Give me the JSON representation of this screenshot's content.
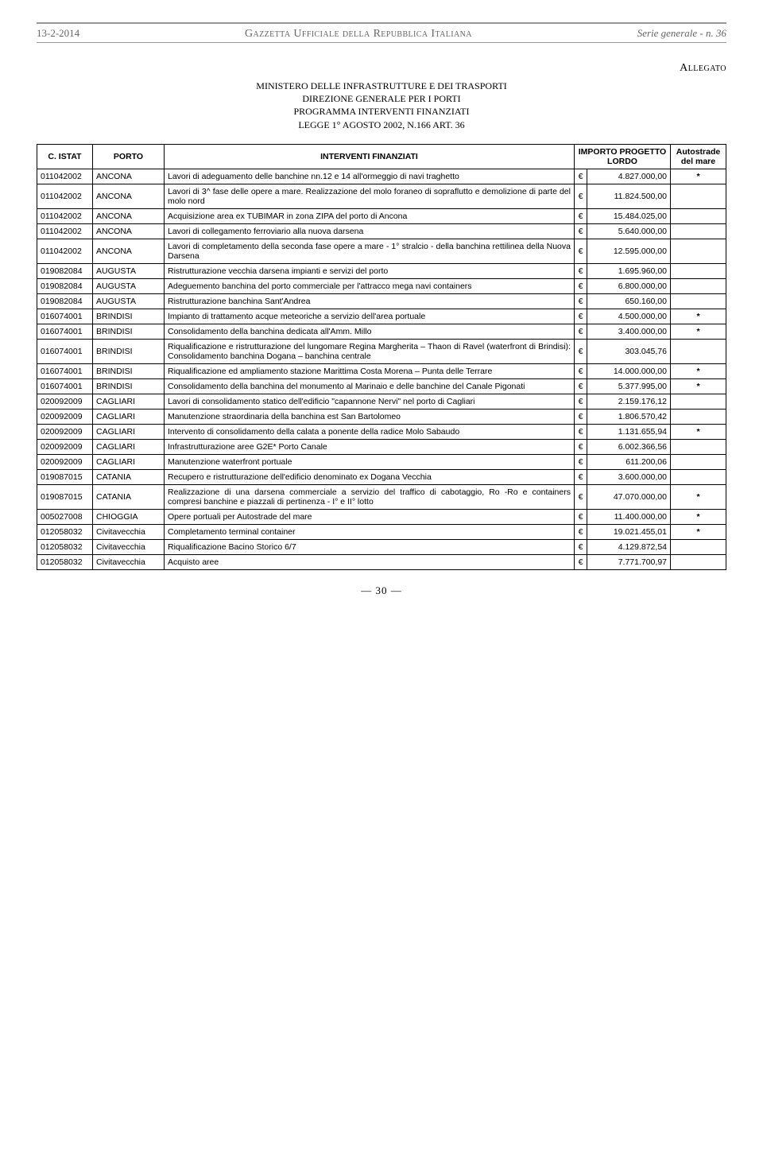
{
  "header": {
    "date": "13-2-2014",
    "title": "Gazzetta Ufficiale della Repubblica Italiana",
    "serie": "Serie generale - n. 36"
  },
  "allegato_label": "Allegato",
  "doc_title": {
    "l1": "MINISTERO DELLE INFRASTRUTTURE E DEI TRASPORTI",
    "l2": "DIREZIONE GENERALE PER I PORTI",
    "l3": "PROGRAMMA INTERVENTI FINANZIATI",
    "l4": "LEGGE 1° AGOSTO 2002, N.166 ART. 36"
  },
  "columns": {
    "istat": "C. ISTAT",
    "porto": "PORTO",
    "interventi": "INTERVENTI FINANZIATI",
    "importo": "IMPORTO PROGETTO LORDO",
    "autostrade": "Autostrade del mare"
  },
  "rows": [
    {
      "istat": "011042002",
      "porto": "ANCONA",
      "desc": "Lavori di adeguamento delle banchine nn.12 e 14 all'ormeggio di navi traghetto",
      "cur": "€",
      "amt": "4.827.000,00",
      "auto": "*"
    },
    {
      "istat": "011042002",
      "porto": "ANCONA",
      "desc": "Lavori di 3^ fase delle opere a mare. Realizzazione del molo foraneo di sopraflutto e demolizione di parte del molo nord",
      "cur": "€",
      "amt": "11.824.500,00",
      "auto": ""
    },
    {
      "istat": "011042002",
      "porto": "ANCONA",
      "desc": "Acquisizione area ex TUBIMAR in zona ZIPA del porto di Ancona",
      "cur": "€",
      "amt": "15.484.025,00",
      "auto": ""
    },
    {
      "istat": "011042002",
      "porto": "ANCONA",
      "desc": "Lavori di collegamento ferroviario alla nuova darsena",
      "cur": "€",
      "amt": "5.640.000,00",
      "auto": ""
    },
    {
      "istat": "011042002",
      "porto": "ANCONA",
      "desc": "Lavori di completamento della seconda fase opere a mare - 1° stralcio - della banchina rettilinea della Nuova Darsena",
      "cur": "€",
      "amt": "12.595.000,00",
      "auto": ""
    },
    {
      "istat": "019082084",
      "porto": "AUGUSTA",
      "desc": "Ristrutturazione vecchia darsena impianti e servizi del porto",
      "cur": "€",
      "amt": "1.695.960,00",
      "auto": ""
    },
    {
      "istat": "019082084",
      "porto": "AUGUSTA",
      "desc": "Adeguemento banchina del porto commerciale per l'attracco mega navi containers",
      "cur": "€",
      "amt": "6.800.000,00",
      "auto": ""
    },
    {
      "istat": "019082084",
      "porto": "AUGUSTA",
      "desc": "Ristrutturazione banchina Sant'Andrea",
      "cur": "€",
      "amt": "650.160,00",
      "auto": ""
    },
    {
      "istat": "016074001",
      "porto": "BRINDISI",
      "desc": "Impianto di trattamento acque meteoriche a servizio dell'area portuale",
      "cur": "€",
      "amt": "4.500.000,00",
      "auto": "*"
    },
    {
      "istat": "016074001",
      "porto": "BRINDISI",
      "desc": "Consolidamento della banchina dedicata all'Amm. Millo",
      "cur": "€",
      "amt": "3.400.000,00",
      "auto": "*"
    },
    {
      "istat": "016074001",
      "porto": "BRINDISI",
      "desc": "Riqualificazione e ristrutturazione del lungomare Regina Margherita – Thaon di Ravel (waterfront di Brindisi): Consolidamento banchina Dogana – banchina centrale",
      "cur": "€",
      "amt": "303.045,76",
      "auto": ""
    },
    {
      "istat": "016074001",
      "porto": "BRINDISI",
      "desc": "Riqualificazione ed ampliamento stazione Marittima Costa Morena – Punta delle Terrare",
      "cur": "€",
      "amt": "14.000.000,00",
      "auto": "*"
    },
    {
      "istat": "016074001",
      "porto": "BRINDISI",
      "desc": "Consolidamento della banchina del monumento al Marinaio e delle banchine del Canale Pigonati",
      "cur": "€",
      "amt": "5.377.995,00",
      "auto": "*"
    },
    {
      "istat": "020092009",
      "porto": "CAGLIARI",
      "desc": "Lavori di consolidamento statico dell'edificio \"capannone Nervi\" nel porto di Cagliari",
      "cur": "€",
      "amt": "2.159.176,12",
      "auto": ""
    },
    {
      "istat": "020092009",
      "porto": "CAGLIARI",
      "desc": "Manutenzione straordinaria della banchina est San Bartolomeo",
      "cur": "€",
      "amt": "1.806.570,42",
      "auto": ""
    },
    {
      "istat": "020092009",
      "porto": "CAGLIARI",
      "desc": "Intervento di consolidamento della calata a ponente della radice Molo Sabaudo",
      "cur": "€",
      "amt": "1.131.655,94",
      "auto": "*"
    },
    {
      "istat": "020092009",
      "porto": "CAGLIARI",
      "desc": "Infrastrutturazione aree G2E* Porto Canale",
      "cur": "€",
      "amt": "6.002.366,56",
      "auto": ""
    },
    {
      "istat": "020092009",
      "porto": "CAGLIARI",
      "desc": "Manutenzione waterfront portuale",
      "cur": "€",
      "amt": "611.200,06",
      "auto": ""
    },
    {
      "istat": "019087015",
      "porto": "CATANIA",
      "desc": "Recupero e ristrutturazione dell'edificio denominato ex Dogana Vecchia",
      "cur": "€",
      "amt": "3.600.000,00",
      "auto": ""
    },
    {
      "istat": "019087015",
      "porto": "CATANIA",
      "desc": "Realizzazione di una darsena commerciale a servizio del traffico di cabotaggio, Ro -Ro e containers compresi banchine e piazzali di pertinenza - I° e II° lotto",
      "cur": "€",
      "amt": "47.070.000,00",
      "auto": "*"
    },
    {
      "istat": "005027008",
      "porto": "CHIOGGIA",
      "desc": "Opere portuali per Autostrade del mare",
      "cur": "€",
      "amt": "11.400.000,00",
      "auto": "*"
    },
    {
      "istat": "012058032",
      "porto": "Civitavecchia",
      "desc": "Completamento terminal container",
      "cur": "€",
      "amt": "19.021.455,01",
      "auto": "*"
    },
    {
      "istat": "012058032",
      "porto": "Civitavecchia",
      "desc": "Riqualificazione Bacino Storico 6/7",
      "cur": "€",
      "amt": "4.129.872,54",
      "auto": ""
    },
    {
      "istat": "012058032",
      "porto": "Civitavecchia",
      "desc": "Acquisto aree",
      "cur": "€",
      "amt": "7.771.700,97",
      "auto": ""
    }
  ],
  "page_number": "— 30 —"
}
